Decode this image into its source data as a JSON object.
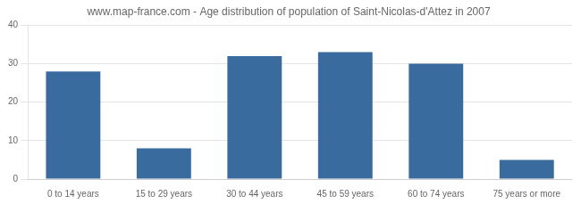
{
  "chart_data": {
    "type": "bar",
    "title": "www.map-france.com - Age distribution of population of Saint-Nicolas-d'Attez in 2007",
    "categories": [
      "0 to 14 years",
      "15 to 29 years",
      "30 to 44 years",
      "45 to 59 years",
      "60 to 74 years",
      "75 years or more"
    ],
    "values": [
      28,
      8,
      32,
      33,
      30,
      5
    ],
    "color": "#3a6b9e",
    "ylim": [
      0,
      40
    ],
    "yticks": [
      0,
      10,
      20,
      30,
      40
    ],
    "grid": true
  }
}
